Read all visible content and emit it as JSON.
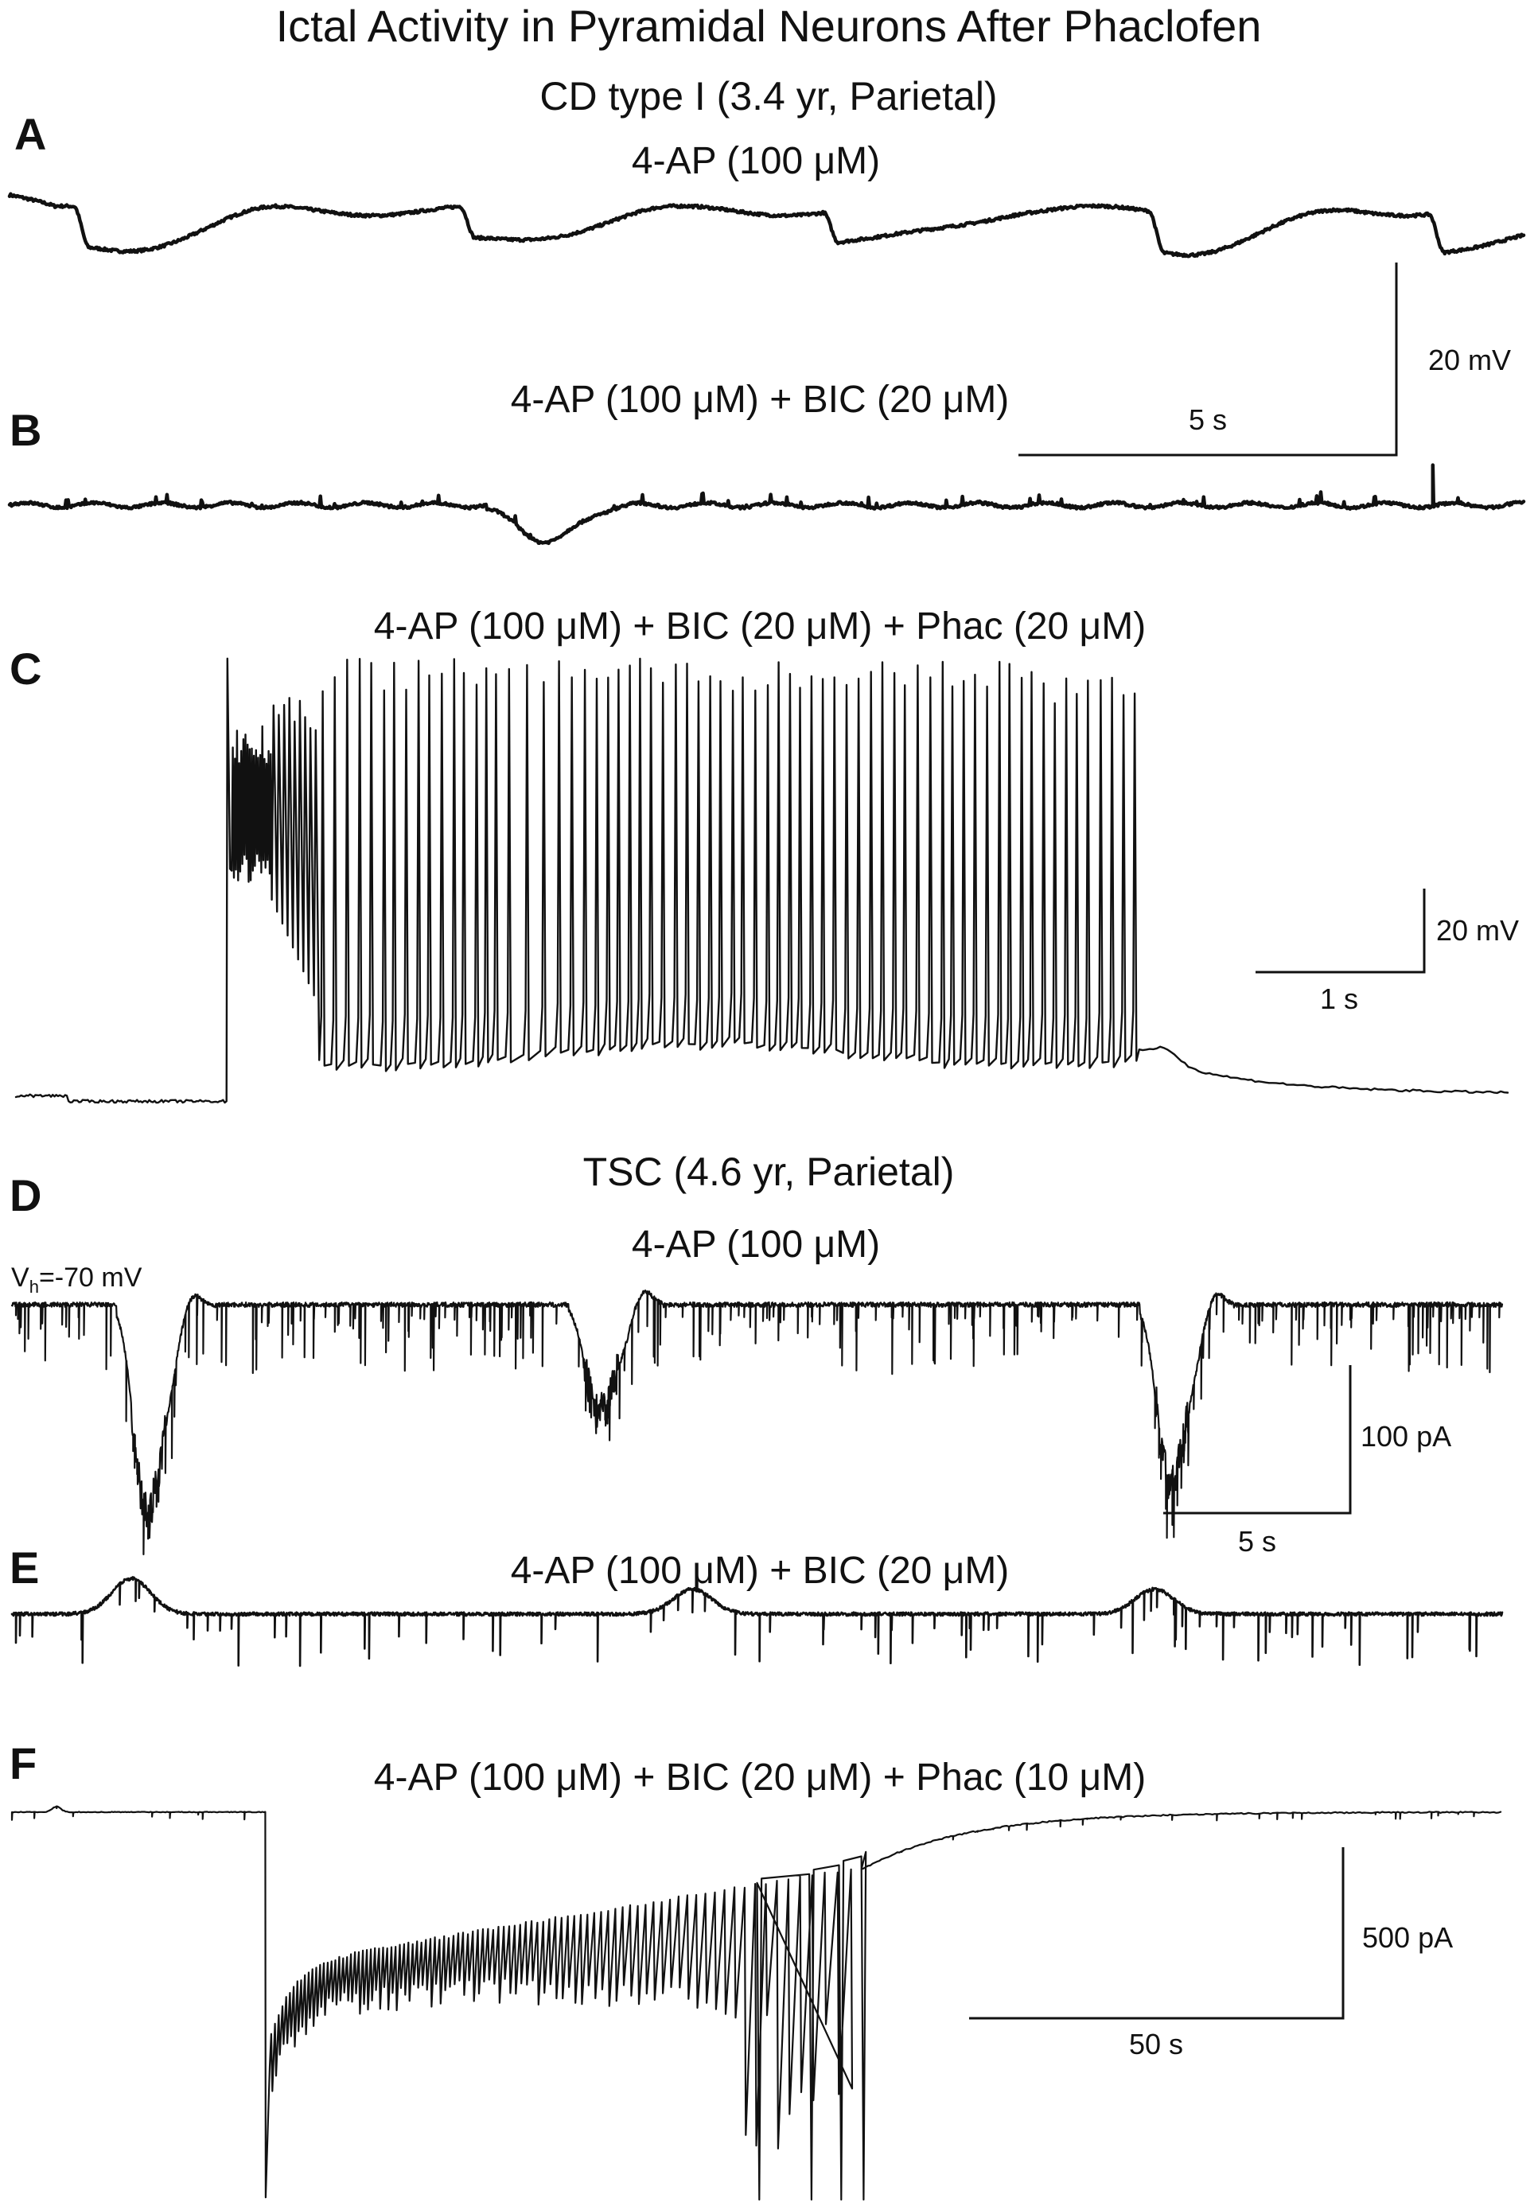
{
  "figure": {
    "title": "Ictal Activity in Pyramidal Neurons After Phaclofen",
    "group1_label": "CD type I (3.4 yr, Parietal)",
    "group2_label": "TSC (4.6 yr, Parietal)",
    "vh_label_main": "V",
    "vh_label_sub": "h",
    "vh_label_rest": "=-70 mV"
  },
  "chart_data": [
    {
      "type": "line",
      "panel": "A",
      "condition": "4-AP (100 μM)",
      "recording": "current clamp",
      "duration_s": 20,
      "ylim": [
        -13,
        7
      ],
      "baseline": 0,
      "events": [
        {
          "t": 1.0,
          "depth": -5
        },
        {
          "t": 6.1,
          "depth": -4
        },
        {
          "t": 10.9,
          "depth": -4
        },
        {
          "t": 15.2,
          "depth": -5
        },
        {
          "t": 18.9,
          "depth": -5
        }
      ],
      "scale_bar": {
        "time": "5 s",
        "amplitude": "20 mV"
      }
    },
    {
      "type": "line",
      "panel": "B",
      "condition": "4-AP (100 μM) + BIC (20 μM)",
      "recording": "current clamp",
      "duration_s": 20,
      "ylim": [
        -12,
        8
      ],
      "baseline": 0,
      "events": [
        {
          "t": 7.1,
          "depth": -4.5
        }
      ],
      "spikes": [
        {
          "t": 18.5,
          "amp": 3
        },
        {
          "t": 18.8,
          "amp": 5
        }
      ]
    },
    {
      "type": "line",
      "panel": "C",
      "condition": "4-AP (100 μM) + BIC (20 μM) + Phac (20 μM)",
      "recording": "current clamp",
      "duration_s": 8.5,
      "ylim": [
        -80,
        12
      ],
      "baseline": -72,
      "ictal_onset_s": 1.2,
      "ictal_offset_s": 6.4,
      "spike_peak": 8,
      "scale_bar": {
        "time": "1 s",
        "amplitude": "20 mV"
      }
    },
    {
      "type": "line",
      "panel": "D",
      "condition": "4-AP (100 μM)",
      "recording": "voltage clamp",
      "duration_s": 30,
      "ylim": [
        -150,
        20
      ],
      "baseline": 0,
      "events": [
        {
          "t": 2.7,
          "depth": -130
        },
        {
          "t": 11.8,
          "depth": -70
        },
        {
          "t": 23.3,
          "depth": -110
        }
      ],
      "scale_bar": {
        "time": "5 s",
        "amplitude": "100 pA"
      }
    },
    {
      "type": "line",
      "panel": "E",
      "condition": "4-AP (100 μM) + BIC (20 μM)",
      "recording": "voltage clamp",
      "duration_s": 30,
      "ylim": [
        -50,
        40
      ],
      "baseline": 0,
      "events": [
        {
          "t": 2.4,
          "height": 20
        },
        {
          "t": 13.7,
          "height": 14
        },
        {
          "t": 23.0,
          "height": 14
        }
      ]
    },
    {
      "type": "line",
      "panel": "F",
      "condition": "4-AP (100 μM) + BIC (20 μM) + Phac (10 μM)",
      "recording": "voltage clamp",
      "duration_s": 200,
      "ylim": [
        -1750,
        100
      ],
      "baseline": 0,
      "ictal_onset_s": 34,
      "ictal_offset_s": 114,
      "scale_bar": {
        "time": "50 s",
        "amplitude": "500 pA"
      }
    }
  ],
  "panels": {
    "A": {
      "letter": "A",
      "condition": "4-AP (100 μM)"
    },
    "B": {
      "letter": "B",
      "condition": "4-AP (100 μM) + BIC (20 μM)"
    },
    "C": {
      "letter": "C",
      "condition": "4-AP (100 μM) + BIC (20 μM) + Phac (20 μM)"
    },
    "D": {
      "letter": "D",
      "condition": "4-AP (100 μM)"
    },
    "E": {
      "letter": "E",
      "condition": "4-AP (100 μM) + BIC (20 μM)"
    },
    "F": {
      "letter": "F",
      "condition": "4-AP (100 μM) + BIC (20 μM) + Phac (10 μM)"
    }
  },
  "scale_bars": {
    "AB": {
      "time": "5 s",
      "amplitude": "20 mV"
    },
    "C": {
      "time": "1 s",
      "amplitude": "20 mV"
    },
    "D": {
      "time": "5 s",
      "amplitude": "100 pA"
    },
    "F": {
      "time": "50 s",
      "amplitude": "500 pA"
    }
  }
}
